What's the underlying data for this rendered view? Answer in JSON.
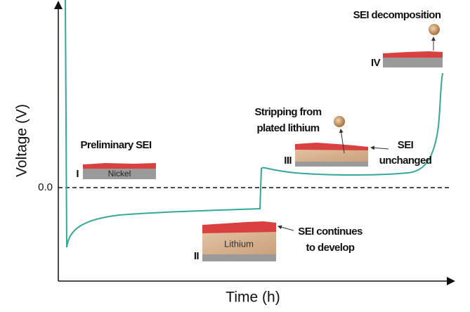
{
  "axes": {
    "y_label": "Voltage (V)",
    "x_label": "Time (h)",
    "y_tick": "0.0"
  },
  "stages": [
    {
      "numeral": "I",
      "label": "Preliminary SEI",
      "substrate": "Nickel"
    },
    {
      "numeral": "II",
      "label_lines": [
        "SEI continues",
        "to develop"
      ],
      "substrate": "Lithium"
    },
    {
      "numeral": "III",
      "label_lines": [
        "Stripping from",
        "plated lithium"
      ],
      "side_lines": [
        "SEI",
        "unchanged"
      ]
    },
    {
      "numeral": "IV",
      "label": "SEI decomposition"
    }
  ]
}
